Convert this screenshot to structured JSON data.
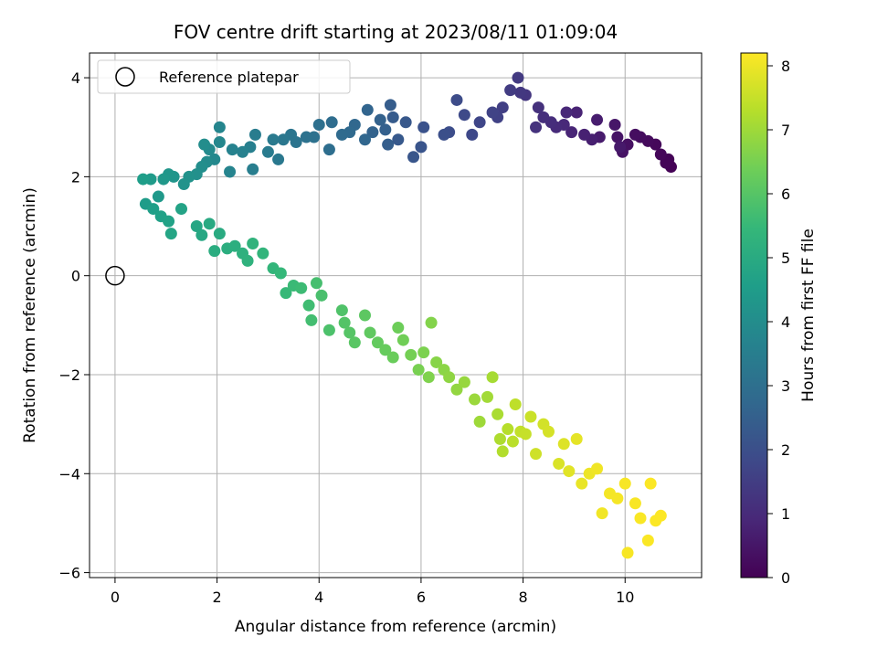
{
  "chart_data": {
    "type": "scatter",
    "title": "FOV centre drift starting at 2023/08/11 01:09:04",
    "xlabel": "Angular distance from reference (arcmin)",
    "ylabel": "Rotation from reference (arcmin)",
    "xlim": [
      -0.5,
      11.5
    ],
    "ylim": [
      -6.1,
      4.5
    ],
    "xticks": [
      0,
      2,
      4,
      6,
      8,
      10
    ],
    "xtick_labels": [
      "0",
      "2",
      "4",
      "6",
      "8",
      "10"
    ],
    "yticks": [
      -6,
      -4,
      -2,
      0,
      2,
      4
    ],
    "ytick_labels": [
      "−6",
      "−4",
      "−2",
      "0",
      "2",
      "4"
    ],
    "grid": true,
    "legend": {
      "placement": "upper-left",
      "entries": [
        {
          "label": "Reference platepar",
          "marker": "open-circle",
          "x": 0,
          "y": 0
        }
      ]
    },
    "colorbar": {
      "label": "Hours from first FF file",
      "colormap": "viridis",
      "range": [
        0,
        8.2
      ],
      "ticks": [
        0,
        1,
        2,
        3,
        4,
        5,
        6,
        7,
        8
      ],
      "tick_labels": [
        "0",
        "1",
        "2",
        "3",
        "4",
        "5",
        "6",
        "7",
        "8"
      ]
    },
    "colors": {
      "grid": "#b0b0b0",
      "viridis_stops": [
        "#440154",
        "#482878",
        "#3e4989",
        "#31688e",
        "#26828e",
        "#1f9e89",
        "#35b779",
        "#6ece58",
        "#b5de2b",
        "#fde725"
      ]
    },
    "series": [
      {
        "point_format": "[x, y, hours]",
        "points": [
          [
            10.9,
            2.2,
            0.02
          ],
          [
            10.85,
            2.35,
            0.05
          ],
          [
            10.8,
            2.28,
            0.08
          ],
          [
            10.7,
            2.45,
            0.12
          ],
          [
            10.6,
            2.65,
            0.16
          ],
          [
            10.45,
            2.72,
            0.2
          ],
          [
            10.3,
            2.8,
            0.25
          ],
          [
            10.2,
            2.85,
            0.3
          ],
          [
            10.05,
            2.65,
            0.35
          ],
          [
            9.95,
            2.5,
            0.4
          ],
          [
            9.85,
            2.8,
            0.45
          ],
          [
            9.8,
            3.05,
            0.5
          ],
          [
            9.9,
            2.6,
            0.55
          ],
          [
            9.5,
            2.8,
            0.6
          ],
          [
            9.45,
            3.15,
            0.65
          ],
          [
            9.35,
            2.75,
            0.7
          ],
          [
            9.2,
            2.85,
            0.75
          ],
          [
            9.05,
            3.3,
            0.8
          ],
          [
            8.95,
            2.9,
            0.85
          ],
          [
            8.85,
            3.3,
            0.9
          ],
          [
            8.8,
            3.05,
            0.95
          ],
          [
            8.65,
            3.0,
            1.0
          ],
          [
            8.55,
            3.1,
            1.05
          ],
          [
            8.4,
            3.2,
            1.1
          ],
          [
            8.3,
            3.4,
            1.15
          ],
          [
            8.25,
            3.0,
            1.2
          ],
          [
            8.05,
            3.65,
            1.3
          ],
          [
            7.95,
            3.7,
            1.35
          ],
          [
            7.9,
            4.0,
            1.4
          ],
          [
            7.75,
            3.75,
            1.45
          ],
          [
            7.6,
            3.4,
            1.55
          ],
          [
            7.5,
            3.2,
            1.6
          ],
          [
            7.4,
            3.3,
            1.65
          ],
          [
            7.15,
            3.1,
            1.75
          ],
          [
            7.0,
            2.85,
            1.8
          ],
          [
            6.85,
            3.25,
            1.85
          ],
          [
            6.7,
            3.55,
            1.9
          ],
          [
            6.55,
            2.9,
            1.95
          ],
          [
            6.45,
            2.85,
            2.0
          ],
          [
            6.05,
            3.0,
            2.1
          ],
          [
            6.0,
            2.6,
            2.15
          ],
          [
            5.85,
            2.4,
            2.2
          ],
          [
            5.7,
            3.1,
            2.25
          ],
          [
            5.55,
            2.75,
            2.3
          ],
          [
            5.45,
            3.2,
            2.35
          ],
          [
            5.4,
            3.45,
            2.4
          ],
          [
            5.35,
            2.65,
            2.45
          ],
          [
            5.3,
            2.95,
            2.5
          ],
          [
            5.2,
            3.15,
            2.55
          ],
          [
            5.05,
            2.9,
            2.6
          ],
          [
            4.95,
            3.35,
            2.65
          ],
          [
            4.9,
            2.75,
            2.7
          ],
          [
            4.7,
            3.05,
            2.75
          ],
          [
            4.6,
            2.9,
            2.8
          ],
          [
            4.45,
            2.85,
            2.85
          ],
          [
            4.25,
            3.1,
            2.9
          ],
          [
            4.2,
            2.55,
            2.95
          ],
          [
            4.0,
            3.05,
            3.0
          ],
          [
            3.9,
            2.8,
            3.05
          ],
          [
            3.75,
            2.8,
            3.1
          ],
          [
            3.55,
            2.7,
            3.15
          ],
          [
            3.45,
            2.85,
            3.2
          ],
          [
            3.3,
            2.75,
            3.25
          ],
          [
            3.2,
            2.35,
            3.3
          ],
          [
            3.1,
            2.75,
            3.35
          ],
          [
            3.0,
            2.5,
            3.4
          ],
          [
            2.75,
            2.85,
            3.45
          ],
          [
            2.7,
            2.15,
            3.5
          ],
          [
            2.65,
            2.6,
            3.55
          ],
          [
            2.5,
            2.5,
            3.6
          ],
          [
            2.3,
            2.55,
            3.65
          ],
          [
            2.25,
            2.1,
            3.7
          ],
          [
            2.05,
            3.0,
            3.75
          ],
          [
            2.05,
            2.7,
            3.8
          ],
          [
            1.95,
            2.35,
            3.85
          ],
          [
            1.85,
            2.55,
            3.9
          ],
          [
            1.8,
            2.3,
            3.95
          ],
          [
            1.75,
            2.65,
            4.0
          ],
          [
            1.7,
            2.2,
            4.05
          ],
          [
            1.6,
            2.05,
            4.1
          ],
          [
            1.45,
            2.0,
            4.15
          ],
          [
            1.35,
            1.85,
            4.2
          ],
          [
            1.15,
            2.0,
            4.25
          ],
          [
            1.05,
            2.05,
            4.3
          ],
          [
            0.95,
            1.95,
            4.35
          ],
          [
            0.85,
            1.6,
            4.4
          ],
          [
            0.7,
            1.95,
            4.45
          ],
          [
            0.6,
            1.45,
            4.5
          ],
          [
            0.55,
            1.95,
            4.55
          ],
          [
            0.75,
            1.35,
            4.6
          ],
          [
            0.9,
            1.2,
            4.65
          ],
          [
            1.05,
            1.1,
            4.7
          ],
          [
            1.3,
            1.35,
            4.75
          ],
          [
            1.1,
            0.85,
            4.8
          ],
          [
            1.6,
            1.0,
            4.85
          ],
          [
            1.7,
            0.82,
            4.9
          ],
          [
            1.85,
            1.05,
            4.95
          ],
          [
            2.05,
            0.85,
            5.0
          ],
          [
            1.95,
            0.5,
            5.05
          ],
          [
            2.2,
            0.55,
            5.1
          ],
          [
            2.35,
            0.6,
            5.15
          ],
          [
            2.5,
            0.45,
            5.2
          ],
          [
            2.6,
            0.3,
            5.25
          ],
          [
            2.7,
            0.65,
            5.3
          ],
          [
            2.9,
            0.45,
            5.35
          ],
          [
            3.1,
            0.15,
            5.4
          ],
          [
            3.25,
            0.05,
            5.45
          ],
          [
            3.35,
            -0.35,
            5.5
          ],
          [
            3.5,
            -0.2,
            5.55
          ],
          [
            3.65,
            -0.25,
            5.6
          ],
          [
            3.8,
            -0.6,
            5.65
          ],
          [
            3.85,
            -0.9,
            5.7
          ],
          [
            3.95,
            -0.15,
            5.75
          ],
          [
            4.05,
            -0.4,
            5.8
          ],
          [
            4.2,
            -1.1,
            5.85
          ],
          [
            4.45,
            -0.7,
            5.9
          ],
          [
            4.5,
            -0.95,
            5.95
          ],
          [
            4.6,
            -1.15,
            6.0
          ],
          [
            4.7,
            -1.35,
            6.05
          ],
          [
            4.9,
            -0.8,
            6.1
          ],
          [
            5.0,
            -1.15,
            6.15
          ],
          [
            5.15,
            -1.35,
            6.2
          ],
          [
            5.3,
            -1.5,
            6.25
          ],
          [
            5.45,
            -1.65,
            6.3
          ],
          [
            5.55,
            -1.05,
            6.35
          ],
          [
            5.65,
            -1.3,
            6.4
          ],
          [
            5.8,
            -1.6,
            6.45
          ],
          [
            5.95,
            -1.9,
            6.5
          ],
          [
            6.05,
            -1.55,
            6.55
          ],
          [
            6.15,
            -2.05,
            6.6
          ],
          [
            6.2,
            -0.95,
            6.65
          ],
          [
            6.3,
            -1.75,
            6.7
          ],
          [
            6.45,
            -1.9,
            6.75
          ],
          [
            6.55,
            -2.05,
            6.8
          ],
          [
            6.7,
            -2.3,
            6.85
          ],
          [
            6.85,
            -2.15,
            6.9
          ],
          [
            7.05,
            -2.5,
            6.95
          ],
          [
            7.15,
            -2.95,
            7.0
          ],
          [
            7.3,
            -2.45,
            7.05
          ],
          [
            7.4,
            -2.05,
            7.1
          ],
          [
            7.5,
            -2.8,
            7.15
          ],
          [
            7.55,
            -3.3,
            7.2
          ],
          [
            7.6,
            -3.55,
            7.25
          ],
          [
            7.7,
            -3.1,
            7.3
          ],
          [
            7.8,
            -3.35,
            7.35
          ],
          [
            7.85,
            -2.6,
            7.4
          ],
          [
            7.95,
            -3.15,
            7.45
          ],
          [
            8.05,
            -3.2,
            7.5
          ],
          [
            8.15,
            -2.85,
            7.55
          ],
          [
            8.25,
            -3.6,
            7.6
          ],
          [
            8.4,
            -3.0,
            7.65
          ],
          [
            8.5,
            -3.15,
            7.7
          ],
          [
            8.7,
            -3.8,
            7.75
          ],
          [
            8.8,
            -3.4,
            7.8
          ],
          [
            8.9,
            -3.95,
            7.85
          ],
          [
            9.05,
            -3.3,
            7.9
          ],
          [
            9.15,
            -4.2,
            7.95
          ],
          [
            9.3,
            -4.0,
            8.0
          ],
          [
            9.45,
            -3.9,
            8.03
          ],
          [
            9.55,
            -4.8,
            8.05
          ],
          [
            9.7,
            -4.4,
            8.08
          ],
          [
            9.85,
            -4.5,
            8.1
          ],
          [
            10.0,
            -4.2,
            8.12
          ],
          [
            10.05,
            -5.6,
            8.13
          ],
          [
            10.2,
            -4.6,
            8.14
          ],
          [
            10.3,
            -4.9,
            8.15
          ],
          [
            10.45,
            -5.35,
            8.16
          ],
          [
            10.5,
            -4.2,
            8.17
          ],
          [
            10.6,
            -4.95,
            8.18
          ],
          [
            10.7,
            -4.85,
            8.19
          ]
        ]
      }
    ]
  }
}
